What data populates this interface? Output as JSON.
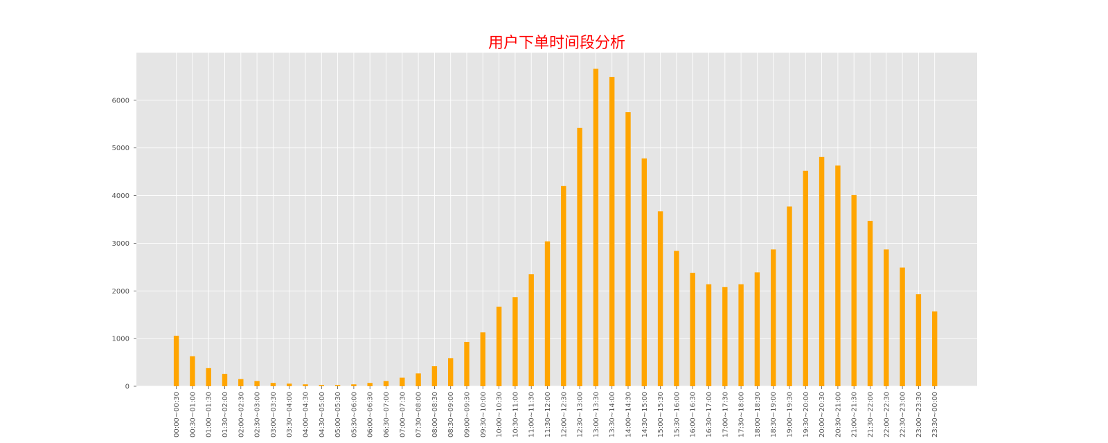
{
  "chart_data": {
    "type": "bar",
    "title": "用户下单时间段分析",
    "xlabel": "",
    "ylabel": "",
    "categories": [
      "00:00~00:30",
      "00:30~01:00",
      "01:00~01:30",
      "01:30~02:00",
      "02:00~02:30",
      "02:30~03:00",
      "03:00~03:30",
      "03:30~04:00",
      "04:00~04:30",
      "04:30~05:00",
      "05:00~05:30",
      "05:30~06:00",
      "06:00~06:30",
      "06:30~07:00",
      "07:00~07:30",
      "07:30~08:00",
      "08:00~08:30",
      "08:30~09:00",
      "09:00~09:30",
      "09:30~10:00",
      "10:00~10:30",
      "10:30~11:00",
      "11:00~11:30",
      "11:30~12:00",
      "12:00~12:30",
      "12:30~13:00",
      "13:00~13:30",
      "13:30~14:00",
      "14:00~14:30",
      "14:30~15:00",
      "15:00~15:30",
      "15:30~16:00",
      "16:00~16:30",
      "16:30~17:00",
      "17:00~17:30",
      "17:30~18:00",
      "18:00~18:30",
      "18:30~19:00",
      "19:00~19:30",
      "19:30~20:00",
      "20:00~20:30",
      "20:30~21:00",
      "21:00~21:30",
      "21:30~22:00",
      "22:00~22:30",
      "22:30~23:00",
      "23:00~23:30",
      "23:30~00:00"
    ],
    "values": [
      1060,
      630,
      380,
      260,
      150,
      110,
      70,
      55,
      40,
      25,
      25,
      40,
      70,
      110,
      180,
      270,
      420,
      590,
      930,
      1130,
      1670,
      1870,
      2350,
      3040,
      4200,
      5420,
      6660,
      6490,
      5750,
      4780,
      3670,
      2840,
      2380,
      2140,
      2080,
      2140,
      2390,
      2870,
      3770,
      4520,
      4810,
      4630,
      4010,
      3470,
      2870,
      2490,
      1930,
      1570
    ],
    "ylim": [
      0,
      7000
    ],
    "yticks": [
      0,
      1000,
      2000,
      3000,
      4000,
      5000,
      6000
    ],
    "grid": true,
    "colors": {
      "bar": "#FFA500",
      "plot_background": "#E5E5E5",
      "grid": "#FFFFFF",
      "title": "#FF0000",
      "tick_text": "#555555"
    }
  }
}
